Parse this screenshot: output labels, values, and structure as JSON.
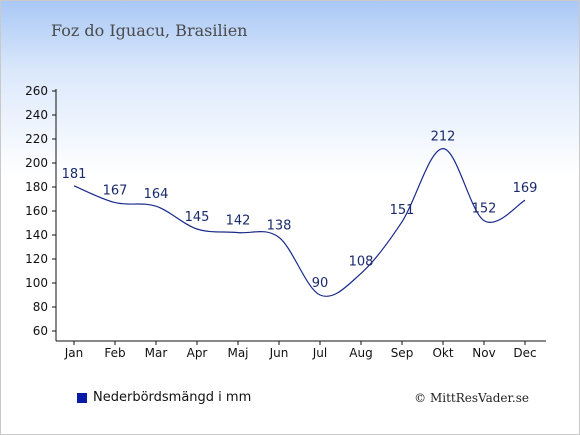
{
  "header": {
    "title": "Foz do Iguacu, Brasilien"
  },
  "legend": {
    "label": "Nederbördsmängd i mm"
  },
  "footer": {
    "copyright": "© MittResVader.se"
  },
  "colors": {
    "line": "#1a2a8c",
    "swatch": "#0a1aa8",
    "axis": "#111111"
  },
  "chart_data": {
    "type": "line",
    "categories": [
      "Jan",
      "Feb",
      "Mar",
      "Apr",
      "Maj",
      "Jun",
      "Jul",
      "Aug",
      "Sep",
      "Okt",
      "Nov",
      "Dec"
    ],
    "series": [
      {
        "name": "Nederbördsmängd i mm",
        "values": [
          181,
          167,
          164,
          145,
          142,
          138,
          90,
          108,
          151,
          212,
          152,
          169
        ]
      }
    ],
    "ylim": [
      60,
      260
    ],
    "yticks": [
      60,
      80,
      100,
      120,
      140,
      160,
      180,
      200,
      220,
      240,
      260
    ],
    "grid": false,
    "legend_position": "bottom-left"
  }
}
